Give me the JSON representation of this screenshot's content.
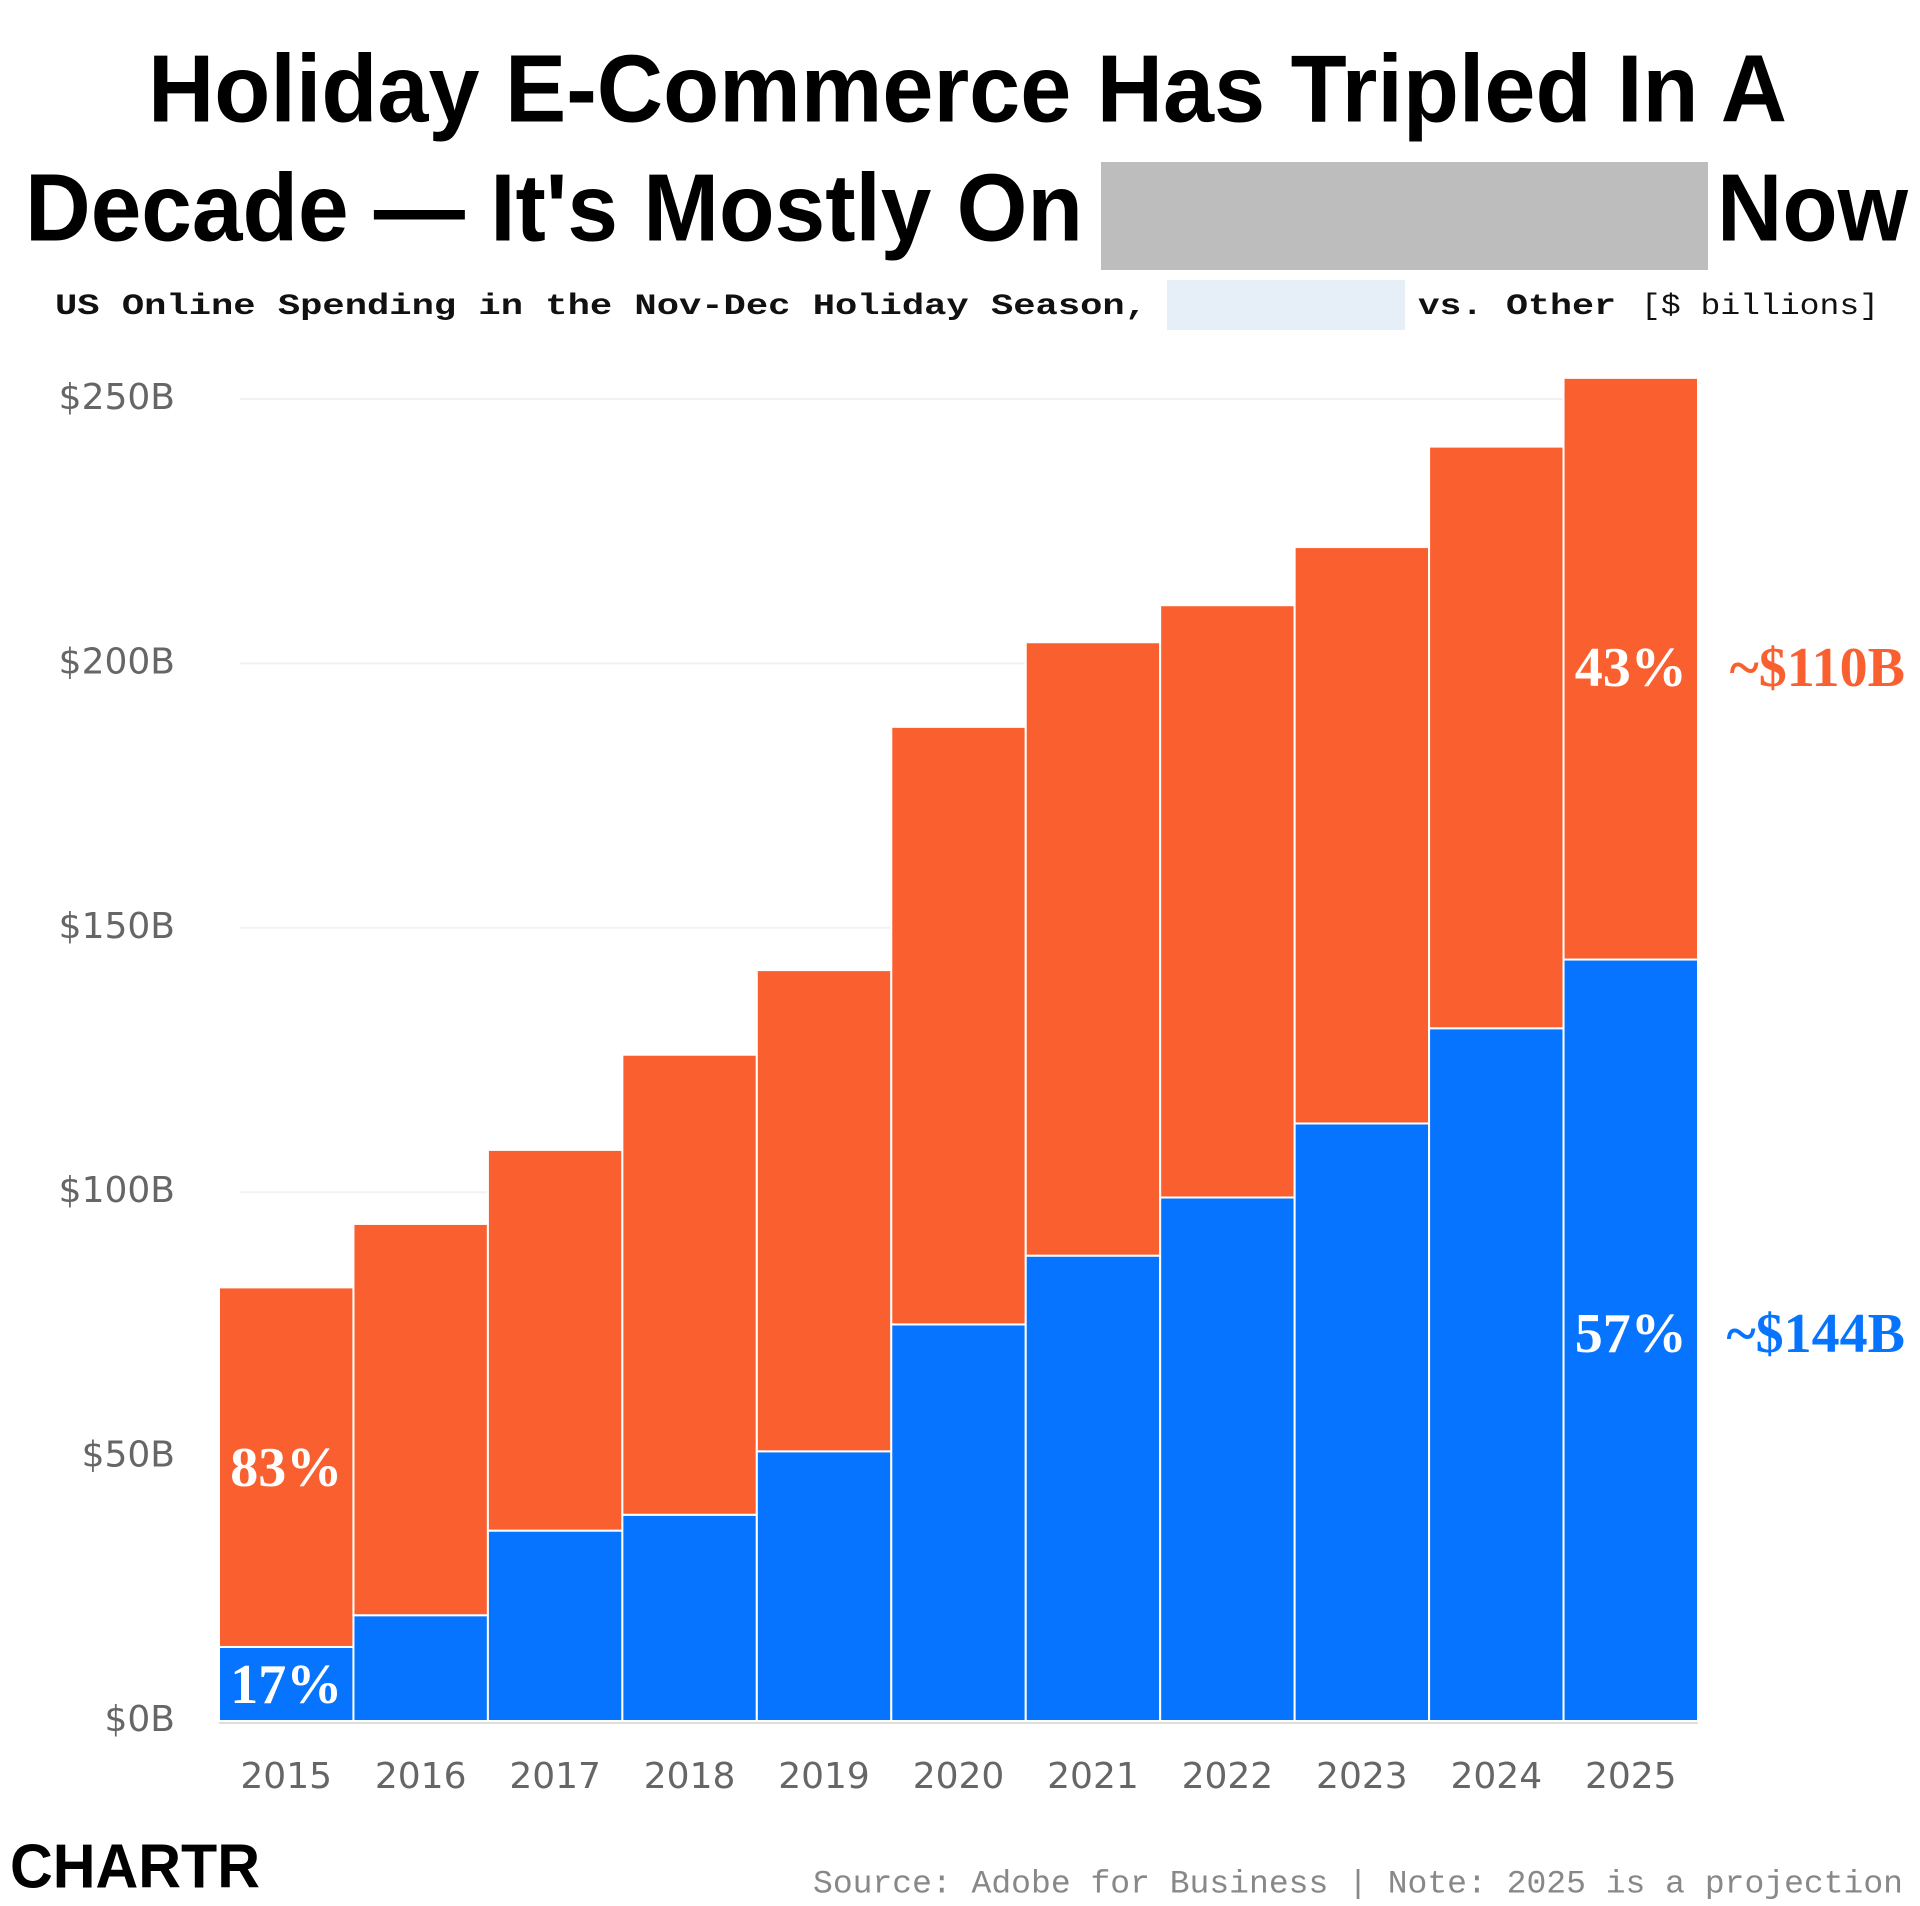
{
  "chart_data": {
    "type": "stacked_bar",
    "title_parts": [
      "Holiday E-Commerce Has Tripled In A",
      "Decade — It's Mostly On",
      "Now"
    ],
    "subtitle_parts": [
      "US Online Spending in the Nov-Dec Holiday Season,",
      "vs.",
      "[$ billions]"
    ],
    "categories": [
      "2015",
      "2016",
      "2017",
      "2018",
      "2019",
      "2020",
      "2021",
      "2022",
      "2023",
      "2024",
      "2025"
    ],
    "series": [
      {
        "color": "#0674fe",
        "values": [
          14,
          20,
          36,
          39,
          51,
          75,
          88,
          99,
          113,
          131,
          144
        ]
      },
      {
        "name": "Other",
        "color": "#fa602f",
        "values": [
          68,
          74,
          72,
          87,
          91,
          113,
          116,
          112,
          109,
          110,
          110
        ]
      }
    ],
    "ylim": [
      0,
      250
    ],
    "yticks": [
      {
        "value": 0,
        "label": "$0B"
      },
      {
        "value": 50,
        "label": "$50B"
      },
      {
        "value": 100,
        "label": "$100B"
      },
      {
        "value": 150,
        "label": "$150B"
      },
      {
        "value": 200,
        "label": "$200B"
      },
      {
        "value": 250,
        "label": "$250B"
      }
    ],
    "grid": true,
    "annotations": [
      "83%",
      "17%",
      "43%",
      "57%",
      "~$110B",
      "~$144B"
    ],
    "source": "Source: Adobe for Business | Note: 2025 is a projection",
    "logo": "CHARTR"
  }
}
